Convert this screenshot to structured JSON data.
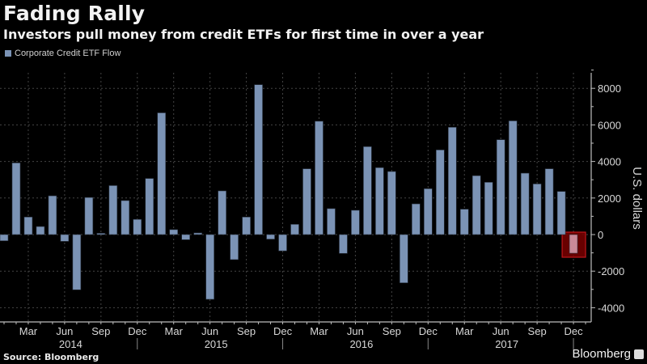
{
  "header": {
    "title": "Fading Rally",
    "subtitle": "Investors pull money from credit ETFs for first time in over a year"
  },
  "footer": {
    "source": "Source: Bloomberg",
    "brand": "Bloomberg"
  },
  "colors": {
    "bar": "#7b93b5",
    "highlight_fill": "#7a0000",
    "highlight_stroke": "#c0161c",
    "highlight_bar": "#c98a99",
    "grid": "#444444",
    "axis": "#bdbdbd"
  },
  "chart_data": {
    "type": "bar",
    "title": "Fading Rally",
    "subtitle": "Investors pull money from credit ETFs for first time in over a year",
    "xlabel": "",
    "ylabel": "U.S. dollars",
    "ylim": [
      -4800,
      9500
    ],
    "yticks": [
      8000,
      6000,
      4000,
      2000,
      0,
      -2000,
      -4000
    ],
    "ytick_labels": [
      "8000",
      "6000",
      "4000",
      "2000",
      "0",
      "-2000",
      "-4000"
    ],
    "grid": true,
    "legend": {
      "position": "top-left",
      "entries": [
        "Corporate Credit ETF Flow"
      ]
    },
    "x_month_labels": [
      "Mar",
      "Jun",
      "Sep",
      "Dec",
      "Mar",
      "Jun",
      "Sep",
      "Dec",
      "Mar",
      "Jun",
      "Sep",
      "Dec",
      "Mar",
      "Jun",
      "Sep",
      "Dec"
    ],
    "x_month_label_index": [
      2,
      5,
      8,
      11,
      14,
      17,
      20,
      23,
      26,
      29,
      32,
      35,
      38,
      41,
      44,
      47
    ],
    "x_year_labels": [
      "2014",
      "2015",
      "2016",
      "2017"
    ],
    "x_year_center_index": [
      5.5,
      17.5,
      29.5,
      41.5
    ],
    "x_year_separator_index": [
      11,
      23,
      35,
      47
    ],
    "highlight_index": 47,
    "series": [
      {
        "name": "Corporate Credit ETF Flow",
        "categories": [
          "Jan 2014",
          "Feb 2014",
          "Mar 2014",
          "Apr 2014",
          "May 2014",
          "Jun 2014",
          "Jul 2014",
          "Aug 2014",
          "Sep 2014",
          "Oct 2014",
          "Nov 2014",
          "Dec 2014",
          "Jan 2015",
          "Feb 2015",
          "Mar 2015",
          "Apr 2015",
          "May 2015",
          "Jun 2015",
          "Jul 2015",
          "Aug 2015",
          "Sep 2015",
          "Oct 2015",
          "Nov 2015",
          "Dec 2015",
          "Jan 2016",
          "Feb 2016",
          "Mar 2016",
          "Apr 2016",
          "May 2016",
          "Jun 2016",
          "Jul 2016",
          "Aug 2016",
          "Sep 2016",
          "Oct 2016",
          "Nov 2016",
          "Dec 2016",
          "Jan 2017",
          "Feb 2017",
          "Mar 2017",
          "Apr 2017",
          "May 2017",
          "Jun 2017",
          "Jul 2017",
          "Aug 2017",
          "Sep 2017",
          "Oct 2017",
          "Nov 2017",
          "Dec 2017"
        ],
        "values": [
          -340,
          3920,
          960,
          440,
          2120,
          -370,
          -3020,
          2030,
          70,
          2680,
          1860,
          830,
          3070,
          6660,
          270,
          -280,
          90,
          -3540,
          2390,
          -1370,
          960,
          8200,
          -250,
          -890,
          560,
          3600,
          6200,
          1420,
          -1030,
          1330,
          4810,
          3660,
          3450,
          -2640,
          1680,
          2510,
          4630,
          5870,
          1390,
          3220,
          2860,
          5190,
          6220,
          3360,
          2770,
          3600,
          2360,
          -1020
        ]
      }
    ]
  }
}
